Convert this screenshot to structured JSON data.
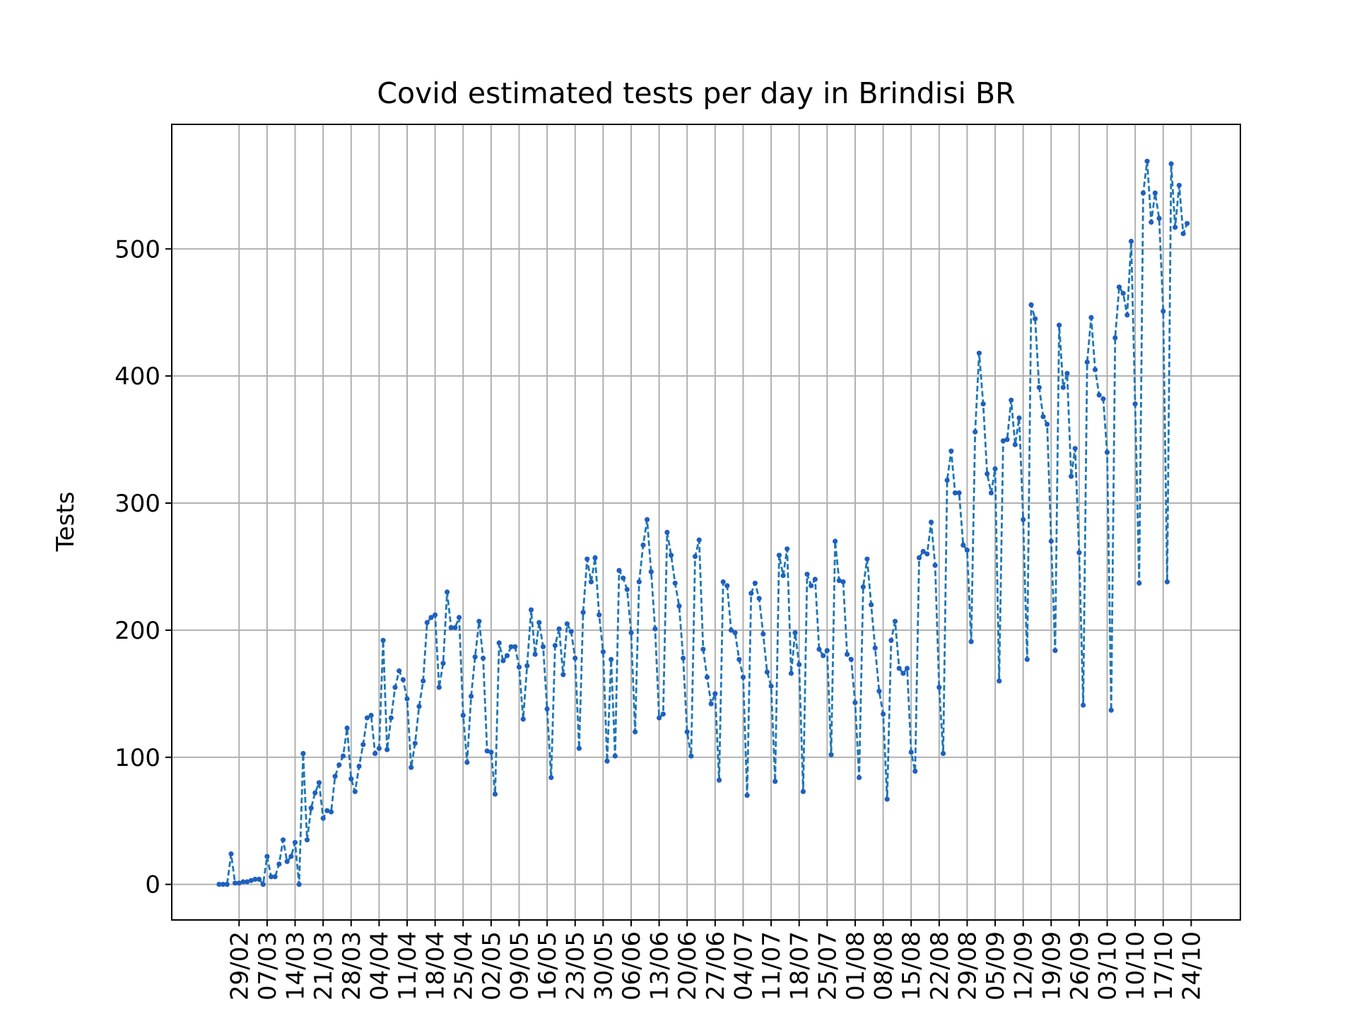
{
  "chart_data": {
    "type": "line",
    "title": "Covid estimated tests per day in Brindisi BR",
    "xlabel": "",
    "ylabel": "Tests",
    "start_date": "2020-02-24",
    "x_tick_labels": [
      "29/02",
      "07/03",
      "14/03",
      "21/03",
      "28/03",
      "04/04",
      "11/04",
      "18/04",
      "25/04",
      "02/05",
      "09/05",
      "16/05",
      "23/05",
      "30/05",
      "06/06",
      "13/06",
      "20/06",
      "27/06",
      "04/07",
      "11/07",
      "18/07",
      "25/07",
      "01/08",
      "08/08",
      "15/08",
      "22/08",
      "29/08",
      "05/09",
      "12/09",
      "19/09",
      "26/09",
      "03/10",
      "10/10",
      "17/10",
      "24/10"
    ],
    "y_ticks": [
      0,
      100,
      200,
      300,
      400,
      500
    ],
    "ylim": [
      -28,
      598
    ],
    "grid": true,
    "line_color": "#1f77b4",
    "marker_color": "#1f5fbf",
    "series": [
      {
        "name": "",
        "values": [
          0,
          0,
          0,
          24,
          1,
          1,
          2,
          2,
          3,
          4,
          4,
          0,
          22,
          6,
          6,
          16,
          35,
          18,
          22,
          33,
          0,
          103,
          35,
          60,
          72,
          80,
          52,
          58,
          57,
          85,
          94,
          101,
          123,
          83,
          73,
          93,
          110,
          131,
          133,
          103,
          107,
          192,
          106,
          131,
          155,
          168,
          161,
          146,
          92,
          111,
          140,
          160,
          206,
          210,
          212,
          155,
          174,
          230,
          202,
          202,
          210,
          133,
          96,
          148,
          179,
          207,
          178,
          105,
          104,
          71,
          190,
          176,
          180,
          187,
          187,
          171,
          130,
          172,
          216,
          181,
          206,
          187,
          138,
          84,
          188,
          201,
          165,
          205,
          199,
          178,
          107,
          214,
          256,
          238,
          257,
          212,
          183,
          97,
          177,
          101,
          247,
          241,
          232,
          198,
          120,
          238,
          267,
          287,
          246,
          201,
          131,
          134,
          277,
          259,
          237,
          219,
          178,
          120,
          101,
          258,
          271,
          185,
          163,
          142,
          150,
          82,
          238,
          235,
          200,
          198,
          177,
          163,
          70,
          229,
          237,
          225,
          197,
          167,
          156,
          81,
          259,
          243,
          264,
          166,
          198,
          173,
          73,
          244,
          235,
          240,
          185,
          180,
          184,
          102,
          270,
          239,
          238,
          181,
          177,
          143,
          84,
          234,
          256,
          220,
          186,
          152,
          134,
          67,
          192,
          207,
          170,
          166,
          170,
          104,
          89,
          257,
          262,
          260,
          285,
          251,
          155,
          103,
          318,
          341,
          308,
          308,
          267,
          263,
          191,
          356,
          418,
          378,
          323,
          308,
          327,
          160,
          349,
          350,
          381,
          346,
          367,
          287,
          177,
          456,
          445,
          391,
          368,
          362,
          270,
          184,
          440,
          391,
          402,
          321,
          343,
          261,
          141,
          411,
          446,
          405,
          385,
          382,
          340,
          137,
          430,
          470,
          465,
          448,
          506,
          378,
          237,
          544,
          569,
          521,
          544,
          524,
          451,
          238,
          567,
          517,
          550,
          512,
          520
        ]
      }
    ]
  }
}
